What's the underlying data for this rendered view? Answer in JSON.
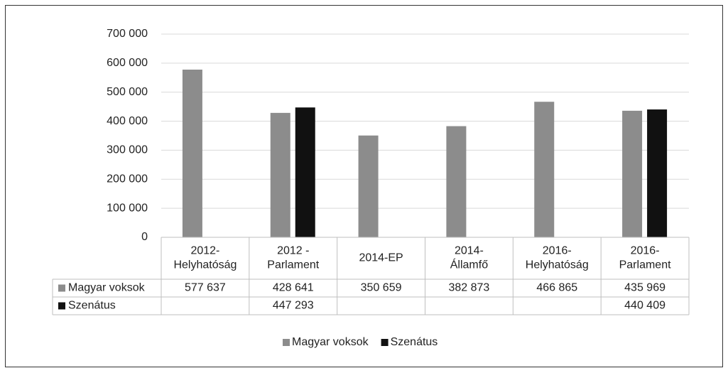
{
  "chart_data": {
    "type": "bar",
    "categories": [
      "2012-\nHelyhatóság",
      "2012 -\nParlament",
      "2014-EP",
      "2014-\nÁllamfő",
      "2016-\nHelyhatóság",
      "2016-\nParlament"
    ],
    "series": [
      {
        "name": "Magyar voksok",
        "color": "#8c8c8c",
        "values": [
          577637,
          428641,
          350659,
          382873,
          466865,
          435969
        ],
        "value_labels": [
          "577 637",
          "428 641",
          "350 659",
          "382 873",
          "466 865",
          "435 969"
        ]
      },
      {
        "name": "Szenátus",
        "color": "#111111",
        "values": [
          null,
          447293,
          null,
          null,
          null,
          440409
        ],
        "value_labels": [
          null,
          "447 293",
          null,
          null,
          null,
          "440 409"
        ]
      }
    ],
    "ylim": [
      0,
      700000
    ],
    "yticks": [
      0,
      {
        "value": 100000,
        "label": "100 000"
      },
      {
        "value": 200000,
        "label": "200 000"
      },
      {
        "value": 300000,
        "label": "300 000"
      },
      {
        "value": 400000,
        "label": "400 000"
      },
      {
        "value": 500000,
        "label": "500 000"
      },
      {
        "value": 600000,
        "label": "600 000"
      },
      {
        "value": 700000,
        "label": "700 000"
      }
    ],
    "grid": true,
    "legend": "bottom",
    "data_table": true
  }
}
